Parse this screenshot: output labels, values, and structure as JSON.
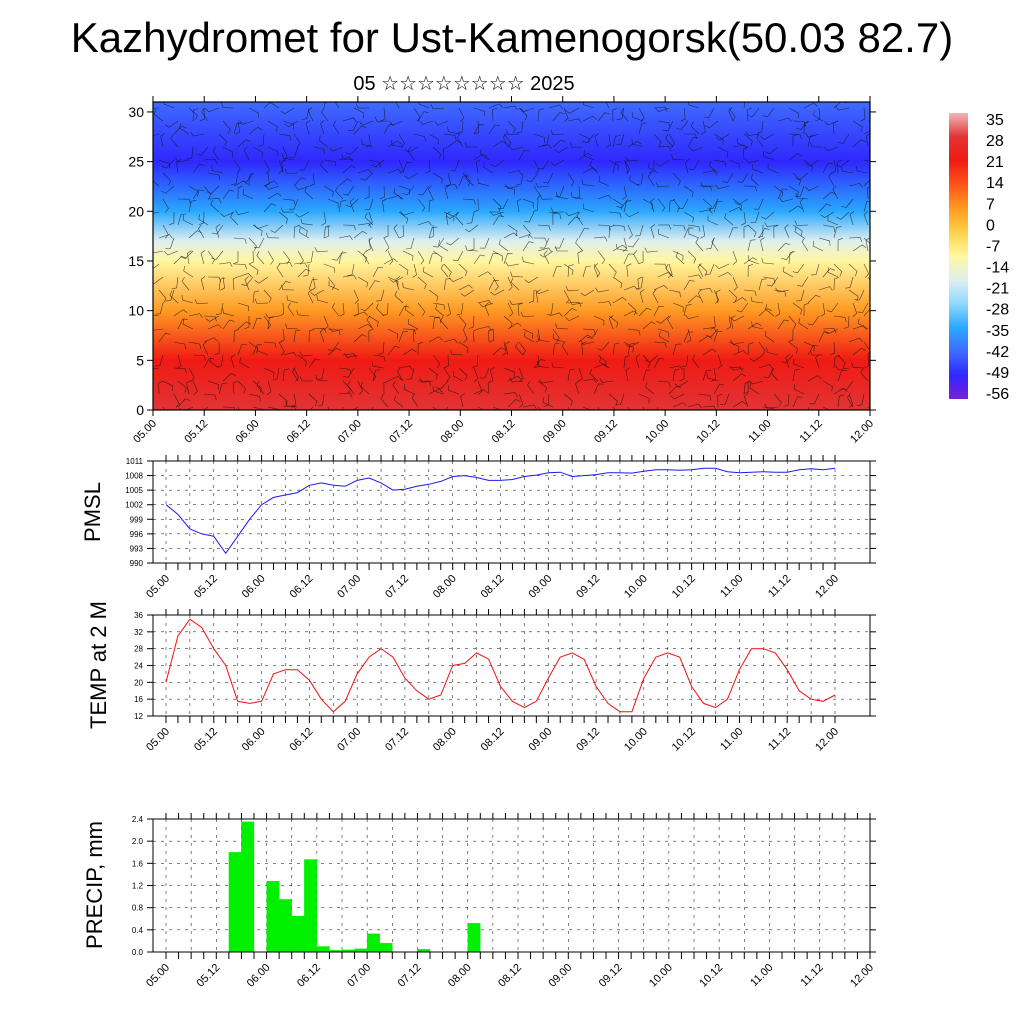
{
  "title": "Kazhydromet for Ust-Kamenogorsk(50.03 82.7)",
  "subtitle": "05 ☆☆☆☆☆☆☆☆ 2025",
  "chart_data": [
    {
      "type": "heatmap",
      "panel": "cross-section",
      "x_tick_labels": [
        "05.00",
        "05.12",
        "06.00",
        "06.12",
        "07.00",
        "07.12",
        "08.00",
        "08.12",
        "09.00",
        "09.12",
        "10.00",
        "10.12",
        "11.00",
        "11.12",
        "12.00"
      ],
      "y_ticks": [
        0,
        5,
        10,
        15,
        20,
        25,
        30
      ],
      "ylim": [
        0,
        31
      ],
      "overlay": "wind barbs",
      "colorbar_labels": [
        "35",
        "28",
        "21",
        "14",
        "7",
        "0",
        "-7",
        "-14",
        "-21",
        "-28",
        "-35",
        "-42",
        "-49",
        "-56"
      ],
      "colorbar_range": [
        -56,
        35
      ],
      "colors": [
        "#7b1fd6",
        "#2f28ff",
        "#3f6bff",
        "#2aa8ff",
        "#8fd8ff",
        "#dfeff0",
        "#fff7a0",
        "#ffd24a",
        "#ff9a22",
        "#ff5518",
        "#f01a14",
        "#e23434",
        "#f2b8b8"
      ],
      "temperature_levels_by_height": [
        {
          "height": 0,
          "value": 26
        },
        {
          "height": 5,
          "value": 22
        },
        {
          "height": 10,
          "value": 8
        },
        {
          "height": 15,
          "value": -8
        },
        {
          "height": 17,
          "value": -16
        },
        {
          "height": 20,
          "value": -34
        },
        {
          "height": 25,
          "value": -52
        },
        {
          "height": 31,
          "value": -44
        }
      ]
    },
    {
      "type": "line",
      "ylabel": "PMSL",
      "color": "#1a1aee",
      "x_tick_labels": [
        "05.00",
        "05.12",
        "06.00",
        "06.12",
        "07.00",
        "07.12",
        "08.00",
        "08.12",
        "09.00",
        "09.12",
        "10.00",
        "10.12",
        "11.00",
        "11.12",
        "12.00"
      ],
      "y_ticks": [
        990,
        993,
        996,
        999,
        1002,
        1005,
        1008,
        1011
      ],
      "ylim": [
        990,
        1011
      ],
      "x_hours": [
        0,
        3,
        6,
        9,
        12,
        15,
        18,
        21,
        24,
        27,
        30,
        33,
        36,
        39,
        42,
        45,
        48,
        51,
        54,
        57,
        60,
        63,
        66,
        69,
        72,
        75,
        78,
        81,
        84,
        87,
        90,
        93,
        96,
        99,
        102,
        105,
        108,
        111,
        114,
        117,
        120,
        123,
        126,
        129,
        132,
        135,
        138,
        141,
        144,
        147,
        150,
        153,
        156,
        159,
        162,
        165,
        168
      ],
      "values": [
        1002,
        1000,
        997,
        996,
        995.5,
        992,
        995.5,
        999,
        1002,
        1003.5,
        1004,
        1004.5,
        1006,
        1006.5,
        1006,
        1005.8,
        1007,
        1007.5,
        1006.5,
        1005,
        1005.2,
        1005.8,
        1006.2,
        1006.8,
        1007.8,
        1008,
        1007.6,
        1007,
        1007,
        1007.2,
        1007.8,
        1008.1,
        1008.6,
        1008.7,
        1007.8,
        1008,
        1008.2,
        1008.6,
        1008.6,
        1008.5,
        1008.9,
        1009.2,
        1009.2,
        1009.1,
        1009.2,
        1009.5,
        1009.5,
        1008.8,
        1008.6,
        1008.7,
        1008.8,
        1008.7,
        1008.7,
        1009.2,
        1009.4,
        1009.2,
        1009.5
      ]
    },
    {
      "type": "line",
      "ylabel": "TEMP at 2 M",
      "color": "#ee1111",
      "x_tick_labels": [
        "05.00",
        "05.12",
        "06.00",
        "06.12",
        "07.00",
        "07.12",
        "08.00",
        "08.12",
        "09.00",
        "09.12",
        "10.00",
        "10.12",
        "11.00",
        "11.12",
        "12.00"
      ],
      "y_ticks": [
        12,
        16,
        20,
        24,
        28,
        32,
        36
      ],
      "ylim": [
        12,
        36
      ],
      "x_hours": [
        0,
        3,
        6,
        9,
        12,
        15,
        18,
        21,
        24,
        27,
        30,
        33,
        36,
        39,
        42,
        45,
        48,
        51,
        54,
        57,
        60,
        63,
        66,
        69,
        72,
        75,
        78,
        81,
        84,
        87,
        90,
        93,
        96,
        99,
        102,
        105,
        108,
        111,
        114,
        117,
        120,
        123,
        126,
        129,
        132,
        135,
        138,
        141,
        144,
        147,
        150,
        153,
        156,
        159,
        162,
        165,
        168
      ],
      "values": [
        20,
        31,
        35,
        33,
        28,
        24,
        15.5,
        15,
        15.5,
        22,
        23,
        23,
        20.5,
        16,
        13,
        15.5,
        22,
        26,
        28,
        26,
        21,
        18,
        16,
        17,
        24,
        24.5,
        27,
        25.5,
        19,
        15.5,
        14,
        15.5,
        21,
        26,
        27,
        25.5,
        19,
        15,
        13,
        13,
        21,
        26,
        27,
        26,
        19,
        15,
        14,
        16,
        23,
        28,
        28,
        27,
        23,
        18,
        16,
        15.5,
        17
      ]
    },
    {
      "type": "bar",
      "ylabel": "PRECIP, mm",
      "color": "#00f000",
      "x_tick_labels": [
        "05.00",
        "05.12",
        "06.00",
        "06.12",
        "07.00",
        "07.12",
        "08.00",
        "08.12",
        "09.00",
        "09.12",
        "10.00",
        "10.12",
        "11.00",
        "11.12",
        "12.00"
      ],
      "y_ticks": [
        0.0,
        0.4,
        0.8,
        1.2,
        1.6,
        2.0,
        2.4
      ],
      "ylim": [
        0,
        2.4
      ],
      "x_hours": [
        15,
        18,
        21,
        24,
        27,
        30,
        33,
        36,
        39,
        42,
        45,
        48,
        51,
        54,
        57,
        60,
        63,
        66,
        69,
        72,
        75,
        78,
        81,
        84,
        87,
        90,
        93,
        96,
        99,
        102,
        105,
        108,
        111,
        114,
        117,
        120,
        123,
        126,
        129,
        132,
        135,
        138,
        141,
        144,
        147,
        150,
        153,
        156,
        159,
        162,
        165,
        168
      ],
      "values": [
        0.0,
        1.8,
        2.35,
        0.0,
        1.28,
        0.95,
        0.65,
        1.67,
        0.1,
        0.03,
        0.04,
        0.06,
        0.33,
        0.16,
        0.0,
        0.0,
        0.05,
        0.0,
        0.0,
        0.0,
        0.52,
        0.0,
        0.0,
        0.0,
        0.0,
        0.0,
        0.0,
        0.0,
        0.0,
        0.0,
        0.0,
        0.0,
        0.0,
        0.0,
        0.0,
        0.0,
        0.0,
        0.0,
        0.0,
        0.0,
        0.0,
        0.0,
        0.0,
        0.0,
        0.0,
        0.0,
        0.0,
        0.0,
        0.0,
        0.0,
        0.0,
        0.0
      ]
    }
  ]
}
